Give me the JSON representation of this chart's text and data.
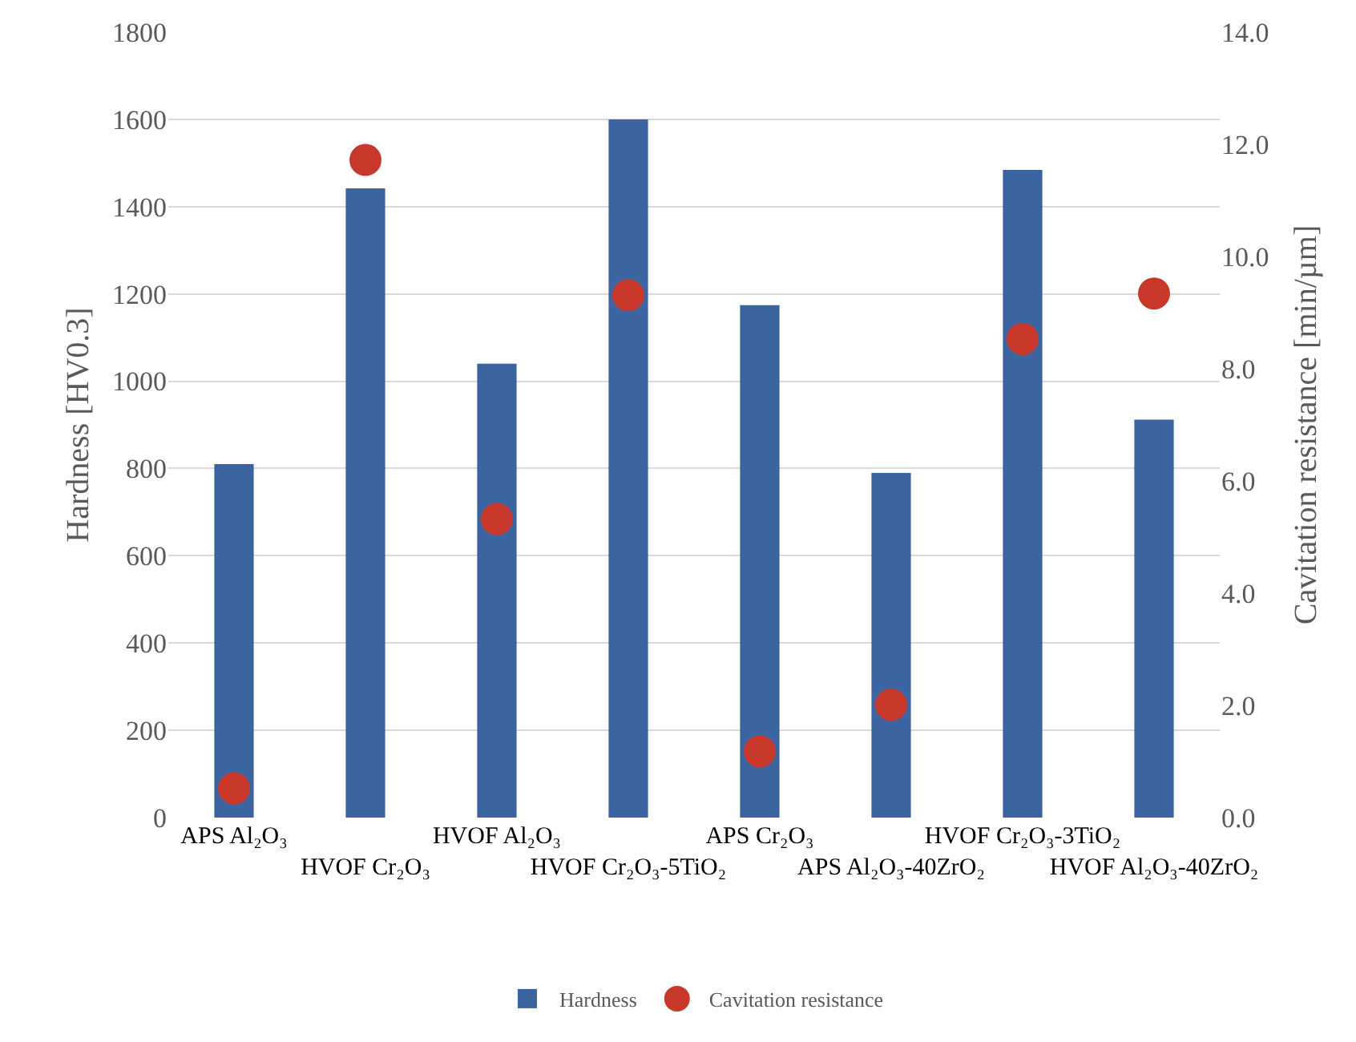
{
  "chart_data": {
    "type": "bar",
    "categories": [
      "APS Al₂O₃",
      "HVOF Cr₂O₃",
      "HVOF Al₂O₃",
      "HVOF Cr₂O₃-5TiO₂",
      "APS Cr₂O₃",
      "APS Al₂O₃-40ZrO₂",
      "HVOF Cr₂O₃-3TiO₂",
      "HVOF Al₂O₃-40ZrO₂"
    ],
    "series": [
      {
        "name": "Hardness",
        "color": "#3b64a0",
        "values": [
          810,
          1442,
          1040,
          1600,
          1174,
          790,
          1484,
          912
        ]
      },
      {
        "name": "Cavitation resistance",
        "type": "scatter",
        "axis": "y2",
        "color": "#c8392b",
        "values": [
          0.52,
          11.72,
          5.32,
          9.31,
          1.18,
          2.01,
          8.53,
          9.34
        ]
      }
    ],
    "ylabel": "Hardness [HV0.3]",
    "y2label": "Cavitation resistance [min/µm]",
    "ylim": [
      0,
      1800
    ],
    "yticks": [
      0,
      200,
      400,
      600,
      800,
      1000,
      1200,
      1400,
      1600,
      1800
    ],
    "y2lim": [
      0,
      14
    ],
    "y2ticks": [
      {
        "value": 0,
        "label": "0.0"
      },
      {
        "value": 2,
        "label": "2.0"
      },
      {
        "value": 4,
        "label": "4.0"
      },
      {
        "value": 6,
        "label": "6.0"
      },
      {
        "value": 8,
        "label": "8.0"
      },
      {
        "value": 10,
        "label": "10.0"
      },
      {
        "value": 12,
        "label": "12.0"
      },
      {
        "value": 14,
        "label": "14.0"
      }
    ],
    "grid": "y",
    "legend": "bottom",
    "marker": "circle"
  }
}
